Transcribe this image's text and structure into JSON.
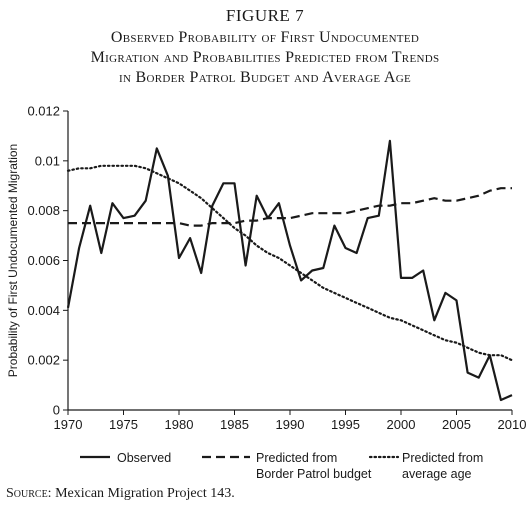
{
  "figure": {
    "label": "FIGURE 7",
    "title_lines": [
      "Observed Probability of First Undocumented",
      "Migration and Probabilities Predicted from Trends",
      "in Border Patrol Budget and Average Age"
    ]
  },
  "source": {
    "prefix": "Source:",
    "text": " Mexican Migration Project 143."
  },
  "chart_data": {
    "type": "line",
    "title": "",
    "xlabel": "",
    "ylabel": "Probability of First Undocumented Migration",
    "xlim": [
      1970,
      2010
    ],
    "ylim": [
      0,
      0.012
    ],
    "x_ticks": [
      "1970",
      "1975",
      "1980",
      "1985",
      "1990",
      "1995",
      "2000",
      "2005",
      "2010"
    ],
    "y_ticks": [
      "0",
      "0.002",
      "0.004",
      "0.006",
      "0.008",
      "0.01",
      "0.012"
    ],
    "grid": false,
    "legend_position": "bottom",
    "x": [
      1970,
      1971,
      1972,
      1973,
      1974,
      1975,
      1976,
      1977,
      1978,
      1979,
      1980,
      1981,
      1982,
      1983,
      1984,
      1985,
      1986,
      1987,
      1988,
      1989,
      1990,
      1991,
      1992,
      1993,
      1994,
      1995,
      1996,
      1997,
      1998,
      1999,
      2000,
      2001,
      2002,
      2003,
      2004,
      2005,
      2006,
      2007,
      2008,
      2009,
      2010
    ],
    "series": [
      {
        "name": "Observed",
        "style": "solid",
        "values": [
          0.0041,
          0.0065,
          0.0082,
          0.0063,
          0.0083,
          0.0077,
          0.0078,
          0.0084,
          0.0105,
          0.0094,
          0.0061,
          0.0069,
          0.0055,
          0.0082,
          0.0091,
          0.0091,
          0.0058,
          0.0086,
          0.0077,
          0.0083,
          0.0066,
          0.0052,
          0.0056,
          0.0057,
          0.0074,
          0.0065,
          0.0063,
          0.0077,
          0.0078,
          0.0108,
          0.0053,
          0.0053,
          0.0056,
          0.0036,
          0.0047,
          0.0044,
          0.0015,
          0.0013,
          0.0022,
          0.0004,
          0.0006
        ]
      },
      {
        "name": "Predicted from Border Patrol budget",
        "label_lines": [
          "Predicted from",
          "Border Patrol budget"
        ],
        "style": "dashed",
        "values": [
          0.0075,
          0.0075,
          0.0075,
          0.0075,
          0.0075,
          0.0075,
          0.0075,
          0.0075,
          0.0075,
          0.0075,
          0.0075,
          0.0074,
          0.0074,
          0.0075,
          0.0075,
          0.0075,
          0.0076,
          0.0076,
          0.0077,
          0.0077,
          0.0077,
          0.0078,
          0.0079,
          0.0079,
          0.0079,
          0.0079,
          0.008,
          0.0081,
          0.0082,
          0.0082,
          0.0083,
          0.0083,
          0.0084,
          0.0085,
          0.0084,
          0.0084,
          0.0085,
          0.0086,
          0.0088,
          0.0089,
          0.0089
        ]
      },
      {
        "name": "Predicted from average age",
        "label_lines": [
          "Predicted from",
          "average age"
        ],
        "style": "dotted",
        "values": [
          0.0096,
          0.0097,
          0.0097,
          0.0098,
          0.0098,
          0.0098,
          0.0098,
          0.0097,
          0.0095,
          0.0093,
          0.0091,
          0.0088,
          0.0085,
          0.0081,
          0.0077,
          0.0073,
          0.007,
          0.0066,
          0.0063,
          0.0061,
          0.0058,
          0.0055,
          0.0052,
          0.0049,
          0.0047,
          0.0045,
          0.0043,
          0.0041,
          0.0039,
          0.0037,
          0.0036,
          0.0034,
          0.0032,
          0.003,
          0.0028,
          0.0027,
          0.0025,
          0.0023,
          0.0022,
          0.0022,
          0.002
        ]
      }
    ]
  }
}
